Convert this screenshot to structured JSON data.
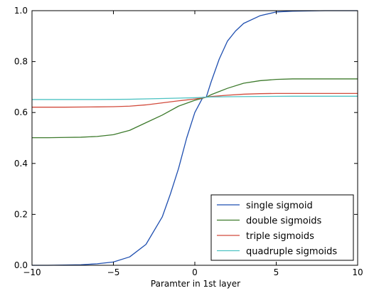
{
  "chart_data": {
    "type": "line",
    "title": "",
    "xlabel": "Paramter in 1st layer",
    "ylabel": "",
    "xlim": [
      -10,
      10
    ],
    "ylim": [
      0.0,
      1.0
    ],
    "xticks": [
      -10,
      -5,
      0,
      5,
      10
    ],
    "xtick_labels": [
      "−10",
      "−5",
      "0",
      "5",
      "10"
    ],
    "yticks": [
      0.0,
      0.2,
      0.4,
      0.6,
      0.8,
      1.0
    ],
    "ytick_labels": [
      "0.0",
      "0.2",
      "0.4",
      "0.6",
      "0.8",
      "1.0"
    ],
    "grid": false,
    "legend_position": "lower-right",
    "series": [
      {
        "name": "single sigmoid",
        "color": "#1f4fb0",
        "x": [
          -10,
          -9,
          -8,
          -7,
          -6,
          -5,
          -4,
          -3,
          -2,
          -1.5,
          -1,
          -0.5,
          0,
          0.5,
          0.7,
          1,
          1.5,
          2,
          2.5,
          3,
          4,
          5,
          6,
          7,
          8,
          9,
          10
        ],
        "y": [
          0.0,
          0.0,
          0.001,
          0.002,
          0.006,
          0.013,
          0.033,
          0.082,
          0.19,
          0.28,
          0.38,
          0.5,
          0.6,
          0.66,
          0.66,
          0.72,
          0.81,
          0.88,
          0.92,
          0.95,
          0.98,
          0.995,
          0.998,
          0.999,
          1.0,
          1.0,
          1.0
        ]
      },
      {
        "name": "double sigmoids",
        "color": "#3d7a2c",
        "x": [
          -10,
          -9,
          -8,
          -7,
          -6,
          -5,
          -4,
          -3,
          -2,
          -1,
          0,
          0.7,
          1,
          2,
          3,
          4,
          5,
          6,
          7,
          8,
          9,
          10
        ],
        "y": [
          0.501,
          0.501,
          0.502,
          0.503,
          0.506,
          0.513,
          0.53,
          0.56,
          0.59,
          0.625,
          0.648,
          0.66,
          0.67,
          0.695,
          0.715,
          0.725,
          0.73,
          0.732,
          0.732,
          0.732,
          0.732,
          0.732
        ]
      },
      {
        "name": "triple sigmoids",
        "color": "#d24b3c",
        "x": [
          -10,
          -8,
          -6,
          -5,
          -4,
          -3,
          -2,
          -1,
          0,
          0.7,
          1,
          2,
          3,
          4,
          5,
          6,
          8,
          10
        ],
        "y": [
          0.621,
          0.621,
          0.622,
          0.623,
          0.625,
          0.63,
          0.638,
          0.646,
          0.653,
          0.66,
          0.663,
          0.668,
          0.672,
          0.674,
          0.675,
          0.675,
          0.675,
          0.675
        ]
      },
      {
        "name": "quadruple sigmoids",
        "color": "#4ec3c3",
        "x": [
          -10,
          -8,
          -6,
          -4,
          -2,
          0,
          0.7,
          1,
          2,
          4,
          6,
          8,
          10
        ],
        "y": [
          0.651,
          0.651,
          0.651,
          0.652,
          0.655,
          0.658,
          0.66,
          0.661,
          0.662,
          0.663,
          0.664,
          0.664,
          0.664
        ]
      }
    ]
  }
}
